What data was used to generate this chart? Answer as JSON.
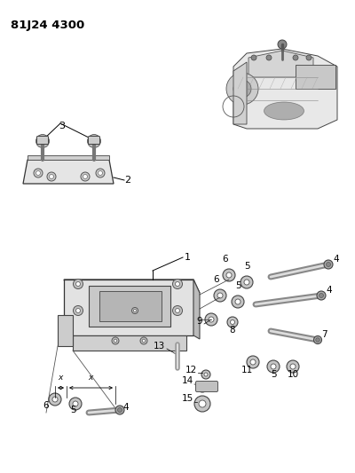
{
  "title": "81J24 4300",
  "bg_color": "#ffffff",
  "fig_width": 4.0,
  "fig_height": 5.33,
  "dpi": 100,
  "lc": "#1a1a1a",
  "lw": 0.8
}
